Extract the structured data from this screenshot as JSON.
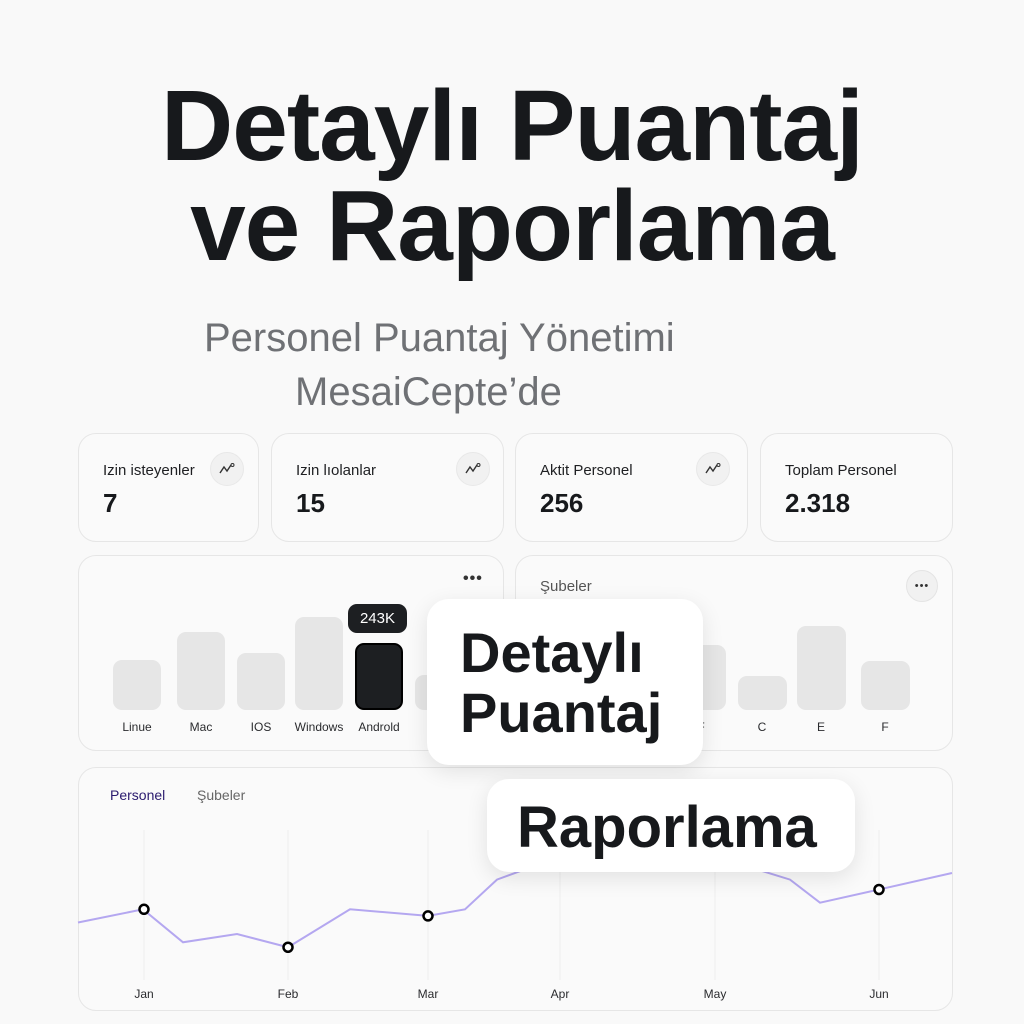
{
  "hero": {
    "title_line1": "Detaylı Puantaj",
    "title_line2": "ve Raporlama",
    "subtitle_line1": "Personel Puantaj Yönetimi",
    "subtitle_line2": "MesaiCepte’de"
  },
  "stats": [
    {
      "label": "Izin isteyenler",
      "value": "7",
      "icon": "trend-icon"
    },
    {
      "label": "Izin lıolanlar",
      "value": "15",
      "icon": "trend-icon"
    },
    {
      "label": "Aktit Personel",
      "value": "256",
      "icon": "trend-icon"
    },
    {
      "label": "Toplam Personel",
      "value": "2.318"
    }
  ],
  "platform_chart": {
    "menu_icon": "more-horizontal-icon",
    "tooltip": "243K",
    "highlight_color": "#1d1f22",
    "bars": [
      {
        "label": "Linue",
        "value": 50
      },
      {
        "label": "Mac",
        "value": 78
      },
      {
        "label": "IOS",
        "value": 57
      },
      {
        "label": "Windows",
        "value": 93
      },
      {
        "label": "Androld",
        "value": 67,
        "highlighted": true
      },
      {
        "label": "C",
        "value": 35
      }
    ]
  },
  "branch_chart": {
    "title": "Şubeler",
    "menu_icon": "more-horizontal-icon",
    "bars": [
      {
        "label": "F",
        "value": 65
      },
      {
        "label": "C",
        "value": 34
      },
      {
        "label": "E",
        "value": 84
      },
      {
        "label": "F",
        "value": 49
      }
    ]
  },
  "overlays": {
    "card1_line1": "Detaylı",
    "card1_line2": "Puantaj",
    "card2": "Raporlama"
  },
  "line_chart": {
    "tabs": [
      {
        "label": "Personel",
        "active": true
      },
      {
        "label": "Şubeler",
        "active": false
      }
    ],
    "line_color": "#b4a7f0",
    "months": [
      "Jan",
      "Feb",
      "Mar",
      "Apr",
      "May",
      "Jun"
    ],
    "series": [
      30,
      38,
      18,
      23,
      15,
      38,
      34,
      38,
      56,
      70,
      75,
      70,
      56,
      42,
      50,
      60
    ],
    "markers": [
      {
        "month": "Jan",
        "value": 38
      },
      {
        "month": "Feb",
        "value": 15
      },
      {
        "month": "Mar",
        "value": 34
      },
      {
        "month": "Jun",
        "value": 50
      }
    ]
  }
}
